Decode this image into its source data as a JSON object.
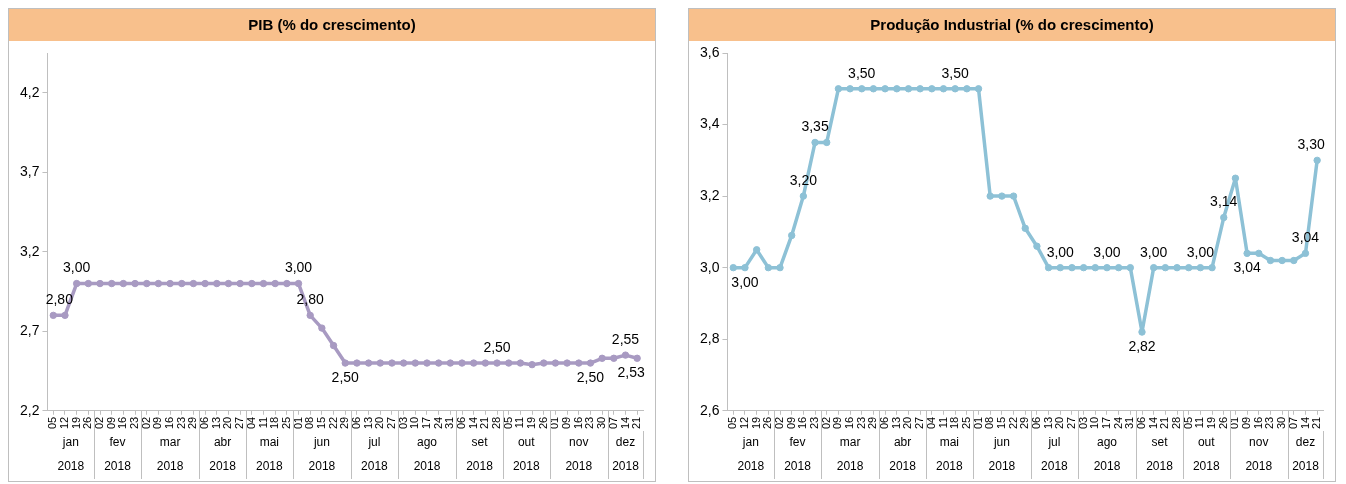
{
  "chart_data": [
    {
      "type": "line",
      "title": "PIB (% do crescimento)",
      "categories": [
        "05",
        "12",
        "19",
        "26",
        "02",
        "09",
        "16",
        "23",
        "02",
        "09",
        "16",
        "23",
        "29",
        "06",
        "13",
        "20",
        "27",
        "04",
        "11",
        "18",
        "25",
        "01",
        "08",
        "15",
        "22",
        "29",
        "06",
        "13",
        "20",
        "27",
        "03",
        "10",
        "17",
        "24",
        "31",
        "06",
        "14",
        "21",
        "28",
        "05",
        "11",
        "19",
        "26",
        "01",
        "09",
        "16",
        "23",
        "30",
        "07",
        "14",
        "21"
      ],
      "series": [
        {
          "color": "#a89ac2",
          "values": [
            2.8,
            2.8,
            3.0,
            3.0,
            3.0,
            3.0,
            3.0,
            3.0,
            3.0,
            3.0,
            3.0,
            3.0,
            3.0,
            3.0,
            3.0,
            3.0,
            3.0,
            3.0,
            3.0,
            3.0,
            3.0,
            3.0,
            2.8,
            2.72,
            2.61,
            2.5,
            2.5,
            2.5,
            2.5,
            2.5,
            2.5,
            2.5,
            2.5,
            2.5,
            2.5,
            2.5,
            2.5,
            2.5,
            2.5,
            2.5,
            2.5,
            2.49,
            2.5,
            2.5,
            2.5,
            2.5,
            2.5,
            2.53,
            2.53,
            2.55,
            2.53
          ],
          "value_labels": [
            "2,80",
            null,
            "3,00",
            null,
            null,
            null,
            null,
            null,
            null,
            null,
            null,
            null,
            null,
            null,
            null,
            null,
            null,
            null,
            null,
            null,
            null,
            "3,00",
            "2,80",
            null,
            null,
            "2,50",
            null,
            null,
            null,
            null,
            null,
            null,
            null,
            null,
            null,
            null,
            null,
            null,
            "2,50",
            null,
            null,
            null,
            null,
            null,
            null,
            null,
            "2,50",
            null,
            null,
            "2,55",
            "2,53"
          ]
        }
      ],
      "annotations": [
        "jan",
        "fev",
        "mar",
        "abr",
        "mai",
        "jun",
        "jul",
        "ago",
        "set",
        "out",
        "nov",
        "dez",
        "2018",
        "2018",
        "2018",
        "2018",
        "2018",
        "2018",
        "2018",
        "2018",
        "2018",
        "2018",
        "2018",
        "2018"
      ],
      "ylim": [
        2.2,
        4.45
      ],
      "yticks": [
        {
          "value": 2.2,
          "label": "2,2"
        },
        {
          "value": 2.7,
          "label": "2,7"
        },
        {
          "value": 3.2,
          "label": "3,2"
        },
        {
          "value": 3.7,
          "label": "3,7"
        },
        {
          "value": 4.2,
          "label": "4,2"
        }
      ],
      "grid": false,
      "legend": false,
      "marker": "circle",
      "line_style": "solid"
    },
    {
      "type": "line",
      "title": "Produção Industrial (% do crescimento)",
      "categories": [
        "05",
        "12",
        "19",
        "26",
        "02",
        "09",
        "16",
        "23",
        "02",
        "09",
        "16",
        "23",
        "29",
        "06",
        "13",
        "20",
        "27",
        "04",
        "11",
        "18",
        "25",
        "01",
        "08",
        "15",
        "22",
        "29",
        "06",
        "13",
        "20",
        "27",
        "03",
        "10",
        "17",
        "24",
        "31",
        "06",
        "14",
        "21",
        "28",
        "05",
        "11",
        "19",
        "26",
        "01",
        "09",
        "16",
        "23",
        "30",
        "07",
        "14",
        "21"
      ],
      "series": [
        {
          "color": "#8dc1d6",
          "values": [
            3.0,
            3.0,
            3.05,
            3.0,
            3.0,
            3.09,
            3.2,
            3.35,
            3.35,
            3.5,
            3.5,
            3.5,
            3.5,
            3.5,
            3.5,
            3.5,
            3.5,
            3.5,
            3.5,
            3.5,
            3.5,
            3.5,
            3.2,
            3.2,
            3.2,
            3.11,
            3.06,
            3.0,
            3.0,
            3.0,
            3.0,
            3.0,
            3.0,
            3.0,
            3.0,
            2.82,
            3.0,
            3.0,
            3.0,
            3.0,
            3.0,
            3.0,
            3.14,
            3.25,
            3.04,
            3.04,
            3.02,
            3.02,
            3.02,
            3.04,
            3.3
          ],
          "value_labels": [
            null,
            "3,00",
            null,
            null,
            null,
            null,
            "3,20",
            "3,35",
            null,
            null,
            null,
            "3,50",
            null,
            null,
            null,
            null,
            null,
            null,
            null,
            "3,50",
            null,
            null,
            null,
            null,
            null,
            null,
            null,
            null,
            "3,00",
            null,
            null,
            null,
            "3,00",
            null,
            null,
            "2,82",
            "3,00",
            null,
            null,
            null,
            "3,00",
            null,
            "3,14",
            null,
            "3,04",
            null,
            null,
            null,
            null,
            "3,04",
            "3,30"
          ]
        }
      ],
      "annotations": [
        "jan",
        "fev",
        "mar",
        "abr",
        "mai",
        "jun",
        "jul",
        "ago",
        "set",
        "out",
        "nov",
        "dez",
        "2018",
        "2018",
        "2018",
        "2018",
        "2018",
        "2018",
        "2018",
        "2018",
        "2018",
        "2018",
        "2018",
        "2018"
      ],
      "ylim": [
        2.6,
        3.6
      ],
      "yticks": [
        {
          "value": 2.6,
          "label": "2,6"
        },
        {
          "value": 2.8,
          "label": "2,8"
        },
        {
          "value": 3.0,
          "label": "3,0"
        },
        {
          "value": 3.2,
          "label": "3,2"
        },
        {
          "value": 3.4,
          "label": "3,4"
        },
        {
          "value": 3.6,
          "label": "3,6"
        }
      ],
      "grid": false,
      "legend": false,
      "marker": "circle",
      "line_style": "solid"
    }
  ]
}
